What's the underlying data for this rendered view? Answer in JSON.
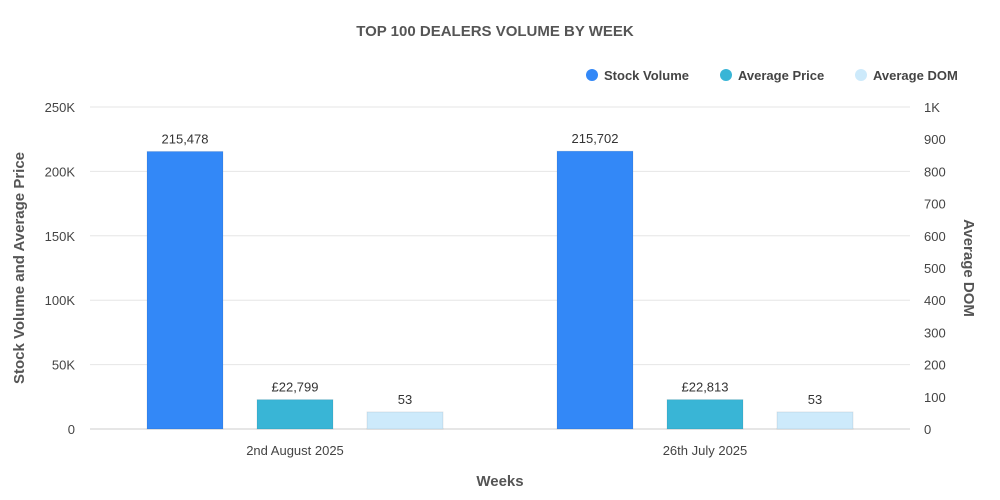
{
  "chart_data": {
    "type": "bar",
    "title": "TOP 100 DEALERS VOLUME BY WEEK",
    "xlabel": "Weeks",
    "ylabel": "Stock Volume and Average Price",
    "ylabel_right": "Average DOM",
    "categories": [
      "2nd August 2025",
      "26th July 2025"
    ],
    "ylim": [
      0,
      250000
    ],
    "ylim_right": [
      0,
      1000
    ],
    "yticks": [
      "0",
      "50K",
      "100K",
      "150K",
      "200K",
      "250K"
    ],
    "yticks_right": [
      "0",
      "100",
      "200",
      "300",
      "400",
      "500",
      "600",
      "700",
      "800",
      "900",
      "1K"
    ],
    "grid": true,
    "legend_position": "top-right",
    "series": [
      {
        "name": "Stock Volume",
        "axis": "left",
        "color": "#3388f7",
        "values": [
          215478,
          215702
        ],
        "labels": [
          "215,478",
          "215,702"
        ]
      },
      {
        "name": "Average Price",
        "axis": "left",
        "color": "#39b5d6",
        "values": [
          22799,
          22813
        ],
        "labels": [
          "£22,799",
          "£22,813"
        ]
      },
      {
        "name": "Average DOM",
        "axis": "right",
        "color": "#cdeafb",
        "values": [
          53,
          53
        ],
        "labels": [
          "53",
          "53"
        ]
      }
    ]
  }
}
